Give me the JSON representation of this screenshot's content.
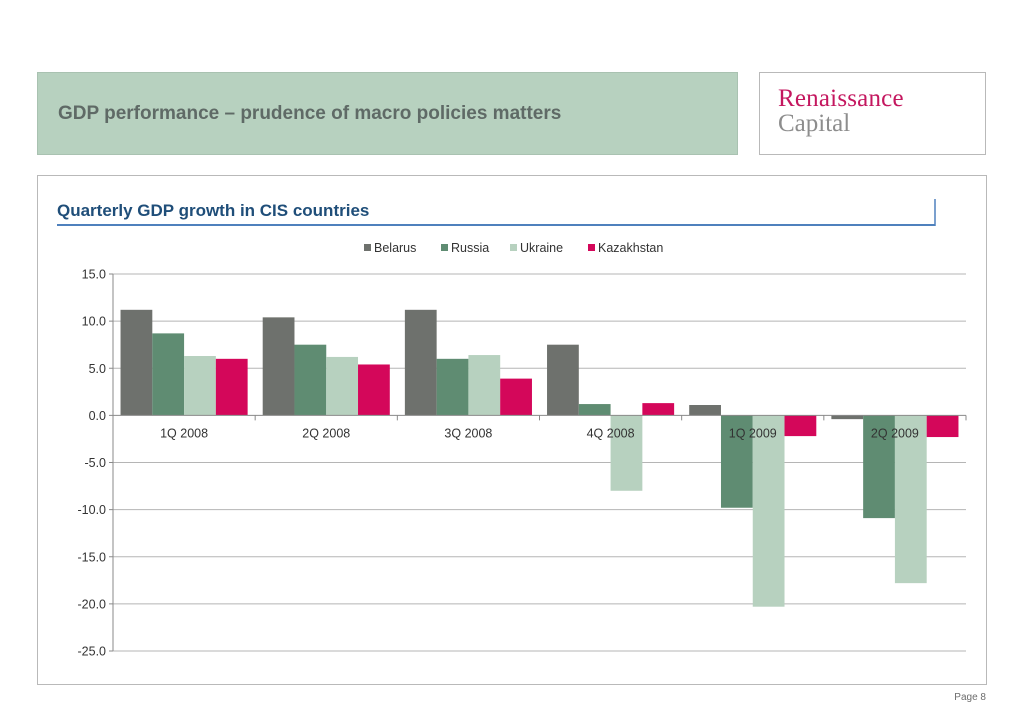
{
  "header": {
    "title": "GDP performance – prudence of macro policies matters"
  },
  "logo": {
    "line1": "Renaissance",
    "line2": "Capital"
  },
  "footer": {
    "page": "Page 8"
  },
  "chart_data": {
    "type": "bar",
    "title": "Quarterly GDP growth in CIS countries",
    "xlabel": "",
    "ylabel": "",
    "categories": [
      "1Q 2008",
      "2Q 2008",
      "3Q 2008",
      "4Q 2008",
      "1Q 2009",
      "2Q 2009"
    ],
    "series": [
      {
        "name": "Belarus",
        "color": "#6e716d",
        "values": [
          11.2,
          10.4,
          11.2,
          7.5,
          1.1,
          -0.4
        ]
      },
      {
        "name": "Russia",
        "color": "#5f8c72",
        "values": [
          8.7,
          7.5,
          6.0,
          1.2,
          -9.8,
          -10.9
        ]
      },
      {
        "name": "Ukraine",
        "color": "#b7d1bf",
        "values": [
          6.3,
          6.2,
          6.4,
          -8.0,
          -20.3,
          -17.8
        ]
      },
      {
        "name": "Kazakhstan",
        "color": "#d4075a",
        "values": [
          6.0,
          5.4,
          3.9,
          1.3,
          -2.2,
          -2.3
        ]
      }
    ],
    "ylim": [
      -25,
      15
    ],
    "yticks": [
      "15.0",
      "10.0",
      "5.0",
      "0.0",
      "-5.0",
      "-10.0",
      "-15.0",
      "-20.0",
      "-25.0"
    ],
    "grid": true,
    "legend": "top-center"
  }
}
